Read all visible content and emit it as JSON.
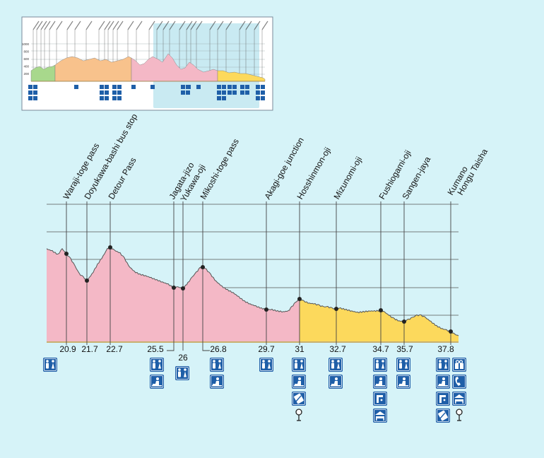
{
  "elevation_profile": {
    "waypoints": [
      {
        "name": "Waraji-toge pass",
        "km": "20.9",
        "facilities": [
          "toilet-icon"
        ]
      },
      {
        "name": "Doyukawa-bashi bus stop",
        "km": "21.7",
        "facilities": []
      },
      {
        "name": "Detour Pass",
        "km": "22.7",
        "facilities": []
      },
      {
        "name": "Jagata-jizo",
        "km": "25.5",
        "facilities": [
          "toilet-icon",
          "rest-area-icon"
        ]
      },
      {
        "name": "Yukawa-oji",
        "km": "26",
        "facilities": [
          "toilet-icon"
        ]
      },
      {
        "name": "Mikoshi-toge pass",
        "km": "26.8",
        "facilities": [
          "toilet-icon",
          "rest-area-icon"
        ]
      },
      {
        "name": "Akagi-goe junction",
        "km": "29.7",
        "facilities": [
          "toilet-icon"
        ]
      },
      {
        "name": "Hosshinmon-oji",
        "km": "31",
        "facilities": [
          "toilet-icon",
          "rest-area-icon",
          "stamp-icon",
          "bus-stop-icon"
        ]
      },
      {
        "name": "Mizunomi-oji",
        "km": "32.7",
        "facilities": [
          "toilet-icon",
          "rest-area-icon"
        ]
      },
      {
        "name": "Fushiogami-oji",
        "km": "34.7",
        "facilities": [
          "toilet-icon",
          "rest-area-icon",
          "drinking-water-icon",
          "lodging-icon"
        ]
      },
      {
        "name": "Sangen-jaya",
        "km": "35.7",
        "facilities": [
          "toilet-icon",
          "rest-area-icon"
        ]
      },
      {
        "name": "Kumano Hongu Taisha",
        "km": "37.8",
        "facilities": [
          "toilet-icon",
          "souvenir-icon",
          "rest-area-icon",
          "phone-icon",
          "drinking-water-icon",
          "lodging-icon",
          "stamp-icon",
          "bus-stop-icon"
        ]
      }
    ],
    "segment_colors": {
      "pink": "#f4b8c6",
      "yellow": "#fcd95c",
      "outline": "#555555"
    }
  },
  "overview_map": {
    "highlight_color": "#bfe6f0",
    "segment_colors": [
      "#a8d88c",
      "#f8c28c",
      "#f4b8c6",
      "#fcd95c"
    ],
    "elevation_ticks": [
      "1000",
      "800",
      "600",
      "400",
      "200"
    ]
  },
  "colors": {
    "background": "#d6f3f8",
    "icon_blue": "#1f5fa8"
  }
}
